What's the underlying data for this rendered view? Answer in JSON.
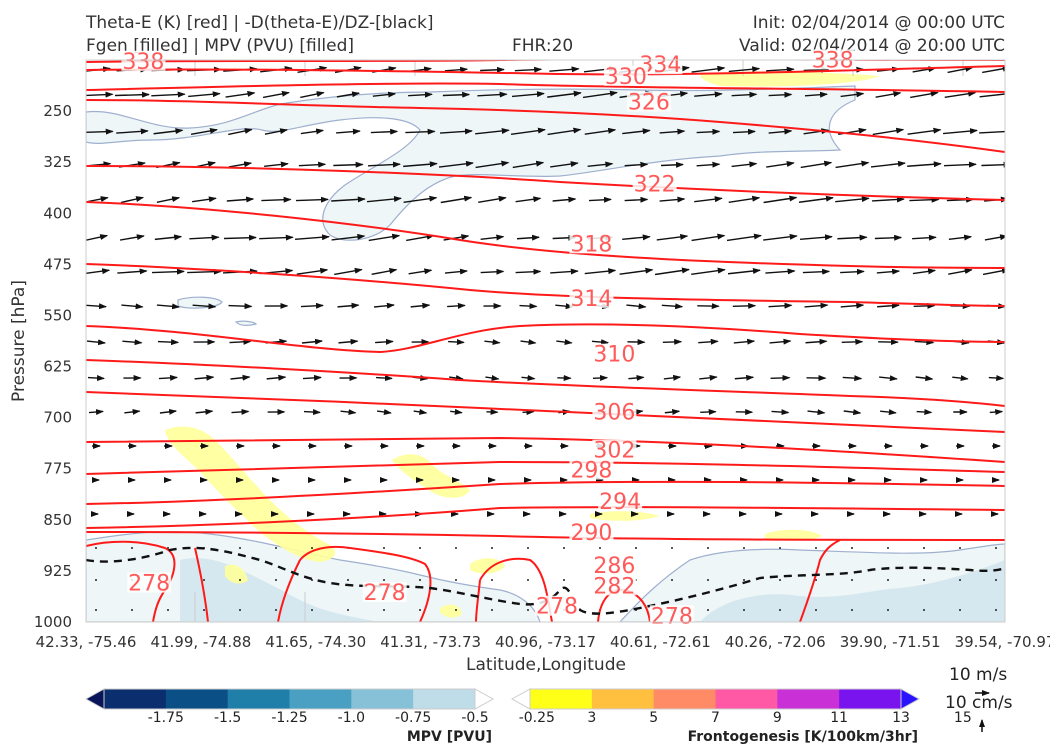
{
  "header": {
    "left_line1": "Theta-E (K) [red] | -D(theta-E)/DZ-[black]",
    "left_line2": "Fgen [filled] | MPV (PVU) [filled]",
    "center": "FHR:20",
    "right_line1": "Init: 02/04/2014 @ 00:00 UTC",
    "right_line2": "Valid: 02/04/2014 @ 20:00 UTC"
  },
  "chart_data": {
    "type": "cross-section",
    "xlabel": "Latitude,Longitude",
    "ylabel": "Pressure [hPa]",
    "ylim": [
      1000,
      175
    ],
    "x_ticks": [
      "42.33, -75.46",
      "41.99, -74.88",
      "41.65, -74.30",
      "41.31, -73.73",
      "40.96, -73.17",
      "40.61, -72.61",
      "40.26, -72.06",
      "39.90, -71.51",
      "39.54, -70.97"
    ],
    "y_ticks": [
      250,
      325,
      400,
      475,
      550,
      625,
      700,
      775,
      850,
      925,
      1000
    ],
    "theta_e_contour_labels": [
      {
        "value": "338",
        "x": 0.5,
        "p": 182
      },
      {
        "value": "334",
        "x": 5.0,
        "p": 187
      },
      {
        "value": "338",
        "x": 6.5,
        "p": 180
      },
      {
        "value": "330",
        "x": 4.7,
        "p": 204
      },
      {
        "value": "326",
        "x": 4.9,
        "p": 242
      },
      {
        "value": "322",
        "x": 4.95,
        "p": 362
      },
      {
        "value": "318",
        "x": 4.4,
        "p": 450
      },
      {
        "value": "314",
        "x": 4.4,
        "p": 530
      },
      {
        "value": "310",
        "x": 4.6,
        "p": 612
      },
      {
        "value": "306",
        "x": 4.6,
        "p": 697
      },
      {
        "value": "302",
        "x": 4.6,
        "p": 753
      },
      {
        "value": "298",
        "x": 4.4,
        "p": 782
      },
      {
        "value": "294",
        "x": 4.65,
        "p": 828
      },
      {
        "value": "290",
        "x": 4.4,
        "p": 874
      },
      {
        "value": "286",
        "x": 4.6,
        "p": 922
      },
      {
        "value": "282",
        "x": 4.6,
        "p": 952
      },
      {
        "value": "278",
        "x": 0.55,
        "p": 948
      },
      {
        "value": "278",
        "x": 2.6,
        "p": 962
      },
      {
        "value": "278",
        "x": 4.1,
        "p": 982
      },
      {
        "value": "278",
        "x": 5.1,
        "p": 996
      }
    ],
    "theta_e_contour_levels": [
      338,
      334,
      330,
      326,
      322,
      318,
      314,
      310,
      306,
      302,
      298,
      294,
      290,
      286,
      282,
      278
    ],
    "wind_vectors_note": "",
    "colorbars": [
      {
        "title": "MPV [PVU]",
        "ticks": [
          "-1.75",
          "-1.5",
          "-1.25",
          "-1.0",
          "-0.75",
          "-0.5",
          "-0.25"
        ],
        "colors": [
          "#08155b",
          "#0b2e6e",
          "#0a4f86",
          "#1f7fa8",
          "#4aa0c3",
          "#86c1d7",
          "#bfdde8",
          "#ffffff"
        ]
      },
      {
        "title": "Frontogenesis [K/100km/3hr]",
        "ticks": [
          "3",
          "5",
          "7",
          "9",
          "11",
          "13",
          "15"
        ],
        "colors": [
          "#ffffff",
          "#ffff17",
          "#ffbf3f",
          "#ff8b66",
          "#ff59a6",
          "#c930d6",
          "#7a14ef",
          "#2a14ff"
        ]
      }
    ],
    "reference_vectors": {
      "horizontal": "10 m/s",
      "vertical": "10 cm/s"
    }
  }
}
